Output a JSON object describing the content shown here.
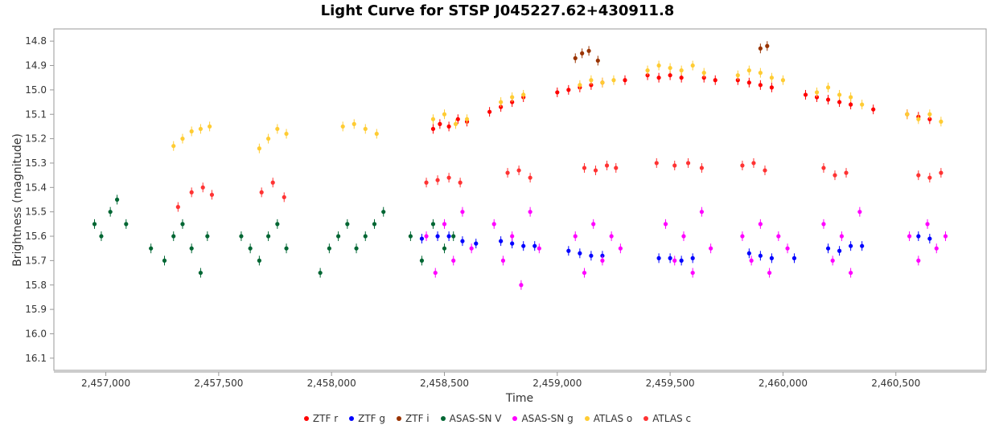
{
  "chart_data": {
    "type": "scatter",
    "title": "Light Curve for STSP J045227.62+430911.8",
    "xlabel": "Time",
    "ylabel": "Brightness (magnitude)",
    "xlim": [
      2456770,
      2460900
    ],
    "ylim": [
      16.15,
      14.75
    ],
    "y_inverted": true,
    "x_ticks": [
      2457000,
      2457500,
      2458000,
      2458500,
      2459000,
      2459500,
      2460000,
      2460500
    ],
    "x_tick_labels": [
      "2,457,000",
      "2,457,500",
      "2,458,000",
      "2,458,500",
      "2,459,000",
      "2,459,500",
      "2,460,000",
      "2,460,500"
    ],
    "y_ticks": [
      14.8,
      14.9,
      15.0,
      15.1,
      15.2,
      15.3,
      15.4,
      15.5,
      15.6,
      15.7,
      15.8,
      15.9,
      16.0,
      16.1
    ],
    "y_tick_labels": [
      "14.8",
      "14.9",
      "15.0",
      "15.1",
      "15.2",
      "15.3",
      "15.4",
      "15.5",
      "15.6",
      "15.7",
      "15.8",
      "15.9",
      "16.0",
      "16.1"
    ],
    "grid": false,
    "legend_position": "bottom",
    "series": [
      {
        "name": "ZTF r",
        "color": "#ff0000",
        "x": [
          2458450,
          2458480,
          2458520,
          2458560,
          2458600,
          2458700,
          2458750,
          2458800,
          2458850,
          2459000,
          2459050,
          2459100,
          2459150,
          2459200,
          2459300,
          2459400,
          2459450,
          2459500,
          2459550,
          2459650,
          2459700,
          2459800,
          2459850,
          2459900,
          2459950,
          2460100,
          2460150,
          2460200,
          2460250,
          2460300,
          2460400,
          2460550,
          2460600,
          2460650
        ],
        "y": [
          15.16,
          15.14,
          15.15,
          15.12,
          15.13,
          15.09,
          15.07,
          15.05,
          15.03,
          15.01,
          15.0,
          14.99,
          14.98,
          14.97,
          14.96,
          14.94,
          14.95,
          14.94,
          14.95,
          14.95,
          14.96,
          14.96,
          14.97,
          14.98,
          14.99,
          15.02,
          15.03,
          15.04,
          15.05,
          15.06,
          15.08,
          15.1,
          15.11,
          15.12
        ]
      },
      {
        "name": "ZTF g",
        "color": "#0000ff",
        "x": [
          2458400,
          2458470,
          2458520,
          2458580,
          2458640,
          2458750,
          2458800,
          2458850,
          2458900,
          2459050,
          2459100,
          2459150,
          2459200,
          2459450,
          2459500,
          2459550,
          2459600,
          2459850,
          2459900,
          2459950,
          2460050,
          2460200,
          2460250,
          2460300,
          2460350,
          2460600,
          2460650
        ],
        "y": [
          15.61,
          15.6,
          15.6,
          15.62,
          15.63,
          15.62,
          15.63,
          15.64,
          15.64,
          15.66,
          15.67,
          15.68,
          15.68,
          15.69,
          15.69,
          15.7,
          15.69,
          15.67,
          15.68,
          15.69,
          15.69,
          15.65,
          15.66,
          15.64,
          15.64,
          15.6,
          15.61
        ]
      },
      {
        "name": "ZTF i",
        "color": "#993300",
        "x": [
          2459080,
          2459110,
          2459140,
          2459180,
          2459900,
          2459930
        ],
        "y": [
          14.87,
          14.85,
          14.84,
          14.88,
          14.83,
          14.82
        ]
      },
      {
        "name": "ASAS-SN V",
        "color": "#006633",
        "x": [
          2456950,
          2456980,
          2457020,
          2457050,
          2457090,
          2457200,
          2457260,
          2457300,
          2457340,
          2457380,
          2457420,
          2457450,
          2457600,
          2457640,
          2457680,
          2457720,
          2457760,
          2457800,
          2457950,
          2457990,
          2458030,
          2458070,
          2458110,
          2458150,
          2458190,
          2458230,
          2458350,
          2458400,
          2458450,
          2458500,
          2458540
        ],
        "y": [
          15.55,
          15.6,
          15.5,
          15.45,
          15.55,
          15.65,
          15.7,
          15.6,
          15.55,
          15.65,
          15.75,
          15.6,
          15.6,
          15.65,
          15.7,
          15.6,
          15.55,
          15.65,
          15.75,
          15.65,
          15.6,
          15.55,
          15.65,
          15.6,
          15.55,
          15.5,
          15.6,
          15.7,
          15.55,
          15.65,
          15.6
        ]
      },
      {
        "name": "ASAS-SN g",
        "color": "#ff00ff",
        "x": [
          2458420,
          2458460,
          2458500,
          2458540,
          2458580,
          2458620,
          2458720,
          2458760,
          2458800,
          2458840,
          2458880,
          2458920,
          2459080,
          2459120,
          2459160,
          2459200,
          2459240,
          2459280,
          2459480,
          2459520,
          2459560,
          2459600,
          2459640,
          2459680,
          2459820,
          2459860,
          2459900,
          2459940,
          2459980,
          2460020,
          2460180,
          2460220,
          2460260,
          2460300,
          2460340,
          2460560,
          2460600,
          2460640,
          2460680,
          2460720
        ],
        "y": [
          15.6,
          15.75,
          15.55,
          15.7,
          15.5,
          15.65,
          15.55,
          15.7,
          15.6,
          15.8,
          15.5,
          15.65,
          15.6,
          15.75,
          15.55,
          15.7,
          15.6,
          15.65,
          15.55,
          15.7,
          15.6,
          15.75,
          15.5,
          15.65,
          15.6,
          15.7,
          15.55,
          15.75,
          15.6,
          15.65,
          15.55,
          15.7,
          15.6,
          15.75,
          15.5,
          15.6,
          15.7,
          15.55,
          15.65,
          15.6
        ]
      },
      {
        "name": "ATLAS o",
        "color": "#ffcc33",
        "x": [
          2457300,
          2457340,
          2457380,
          2457420,
          2457460,
          2457680,
          2457720,
          2457760,
          2457800,
          2458050,
          2458100,
          2458150,
          2458200,
          2458450,
          2458500,
          2458550,
          2458600,
          2458750,
          2458800,
          2458850,
          2459100,
          2459150,
          2459200,
          2459250,
          2459400,
          2459450,
          2459500,
          2459550,
          2459600,
          2459650,
          2459800,
          2459850,
          2459900,
          2459950,
          2460000,
          2460150,
          2460200,
          2460250,
          2460300,
          2460350,
          2460550,
          2460600,
          2460650,
          2460700
        ],
        "y": [
          15.23,
          15.2,
          15.17,
          15.16,
          15.15,
          15.24,
          15.2,
          15.16,
          15.18,
          15.15,
          15.14,
          15.16,
          15.18,
          15.12,
          15.1,
          15.14,
          15.12,
          15.05,
          15.03,
          15.02,
          14.98,
          14.96,
          14.97,
          14.96,
          14.92,
          14.9,
          14.91,
          14.92,
          14.9,
          14.93,
          14.94,
          14.92,
          14.93,
          14.95,
          14.96,
          15.01,
          14.99,
          15.02,
          15.03,
          15.06,
          15.1,
          15.12,
          15.1,
          15.13
        ]
      },
      {
        "name": "ATLAS c",
        "color": "#ff3333",
        "x": [
          2457320,
          2457380,
          2457430,
          2457470,
          2457690,
          2457740,
          2457790,
          2458420,
          2458470,
          2458520,
          2458570,
          2458780,
          2458830,
          2458880,
          2459120,
          2459170,
          2459220,
          2459260,
          2459440,
          2459520,
          2459580,
          2459640,
          2459820,
          2459870,
          2459920,
          2460180,
          2460230,
          2460280,
          2460600,
          2460650,
          2460700
        ],
        "y": [
          15.48,
          15.42,
          15.4,
          15.43,
          15.42,
          15.38,
          15.44,
          15.38,
          15.37,
          15.36,
          15.38,
          15.34,
          15.33,
          15.36,
          15.32,
          15.33,
          15.31,
          15.32,
          15.3,
          15.31,
          15.3,
          15.32,
          15.31,
          15.3,
          15.33,
          15.32,
          15.35,
          15.34,
          15.35,
          15.36,
          15.34
        ]
      }
    ]
  }
}
